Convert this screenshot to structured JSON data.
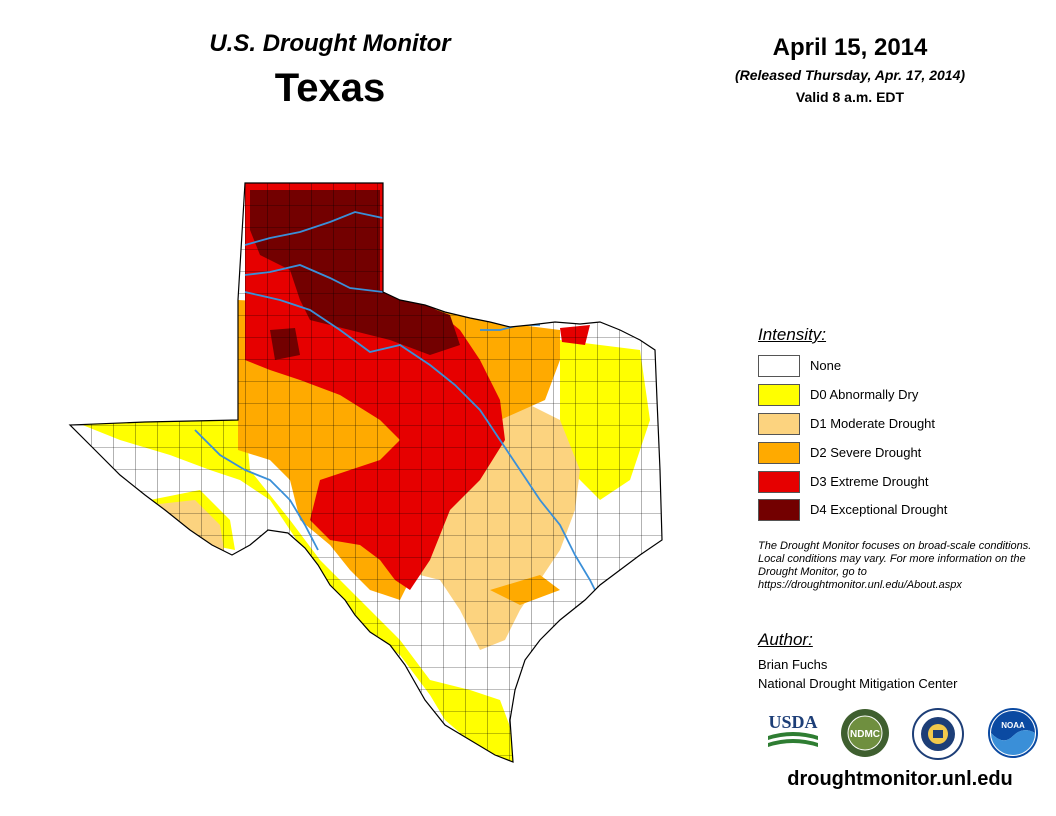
{
  "header": {
    "product": "U.S. Drought Monitor",
    "state": "Texas",
    "date": "April 15, 2014",
    "released": "(Released Thursday, Apr. 17, 2014)",
    "valid": "Valid 8 a.m. EDT"
  },
  "legend": {
    "title": "Intensity:",
    "items": [
      {
        "label": "None",
        "color": "#ffffff"
      },
      {
        "label": "D0 Abnormally Dry",
        "color": "#ffff00"
      },
      {
        "label": "D1 Moderate Drought",
        "color": "#fcd37f"
      },
      {
        "label": "D2 Severe Drought",
        "color": "#ffaa00"
      },
      {
        "label": "D3 Extreme Drought",
        "color": "#e60000"
      },
      {
        "label": "D4 Exceptional Drought",
        "color": "#730000"
      }
    ]
  },
  "note": "The Drought Monitor focuses on broad-scale conditions. Local conditions may vary. For more information on the Drought Monitor, go to https://droughtmonitor.unl.edu/About.aspx",
  "author": {
    "title": "Author:",
    "name": "Brian Fuchs",
    "org": "National Drought Mitigation Center"
  },
  "logos": {
    "usda": "USDA",
    "ndmc": "NDMC",
    "noaa": "NOAA"
  },
  "website": "droughtmonitor.unl.edu",
  "colors": {
    "river": "#3a8fd8",
    "county_line": "#000000"
  }
}
